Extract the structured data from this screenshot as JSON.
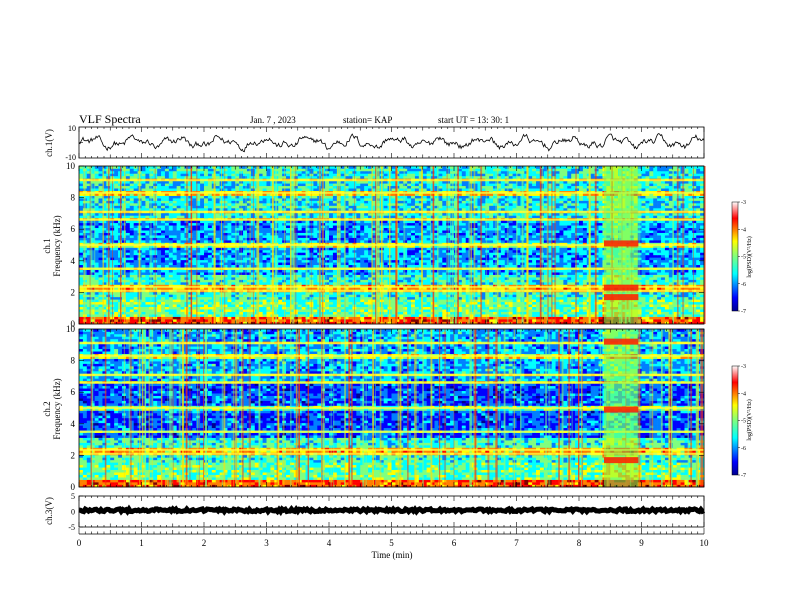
{
  "header": {
    "title": "VLF Spectra",
    "date": "Jan. 7 , 2023",
    "station": "station= KAP",
    "start": "start UT = 13: 30: 1"
  },
  "chart_data": [
    {
      "type": "line",
      "panel": "ch1-waveform",
      "ylabel": "ch.1(V)",
      "ylim": [
        -10,
        10
      ],
      "ytick_labels": [
        "10",
        "-10"
      ],
      "xlim": [
        0,
        10
      ]
    },
    {
      "type": "heatmap",
      "panel": "ch1-spectrogram",
      "ylabel_line1": "ch.1",
      "ylabel_line2": "Frequency (kHz)",
      "ylim": [
        0,
        10
      ],
      "yticks": [
        0,
        2,
        4,
        6,
        8,
        10
      ],
      "xlim": [
        0,
        10
      ],
      "colorbar": {
        "label": "log(PSD)(V²/Hz)",
        "range": [
          -7,
          -3
        ],
        "ticks": [
          -3,
          -4,
          -5,
          -6,
          -7
        ]
      }
    },
    {
      "type": "heatmap",
      "panel": "ch2-spectrogram",
      "ylabel_line1": "ch.2",
      "ylabel_line2": "Frequency (kHz)",
      "ylim": [
        0,
        10
      ],
      "yticks": [
        0,
        2,
        4,
        6,
        8,
        10
      ],
      "xlim": [
        0,
        10
      ],
      "colorbar": {
        "label": "log(PSD)(V²/Hz)",
        "range": [
          -7,
          -3
        ],
        "ticks": [
          -3,
          -4,
          -5,
          -6,
          -7
        ]
      }
    },
    {
      "type": "line",
      "panel": "ch3-waveform",
      "ylabel": "ch.3(V)",
      "ylim": [
        -5,
        5
      ],
      "ytick_labels": [
        "5",
        "0",
        "-5"
      ],
      "xlim": [
        0,
        10
      ],
      "xlabel": "Time (min)",
      "xticks": [
        0,
        1,
        2,
        3,
        4,
        5,
        6,
        7,
        8,
        9,
        10
      ]
    }
  ],
  "colors": {
    "cmap": [
      "#00008f",
      "#0000ff",
      "#007fff",
      "#00ffff",
      "#7fff7f",
      "#ffff00",
      "#ff7f00",
      "#ff0000",
      "#7f0000"
    ]
  }
}
